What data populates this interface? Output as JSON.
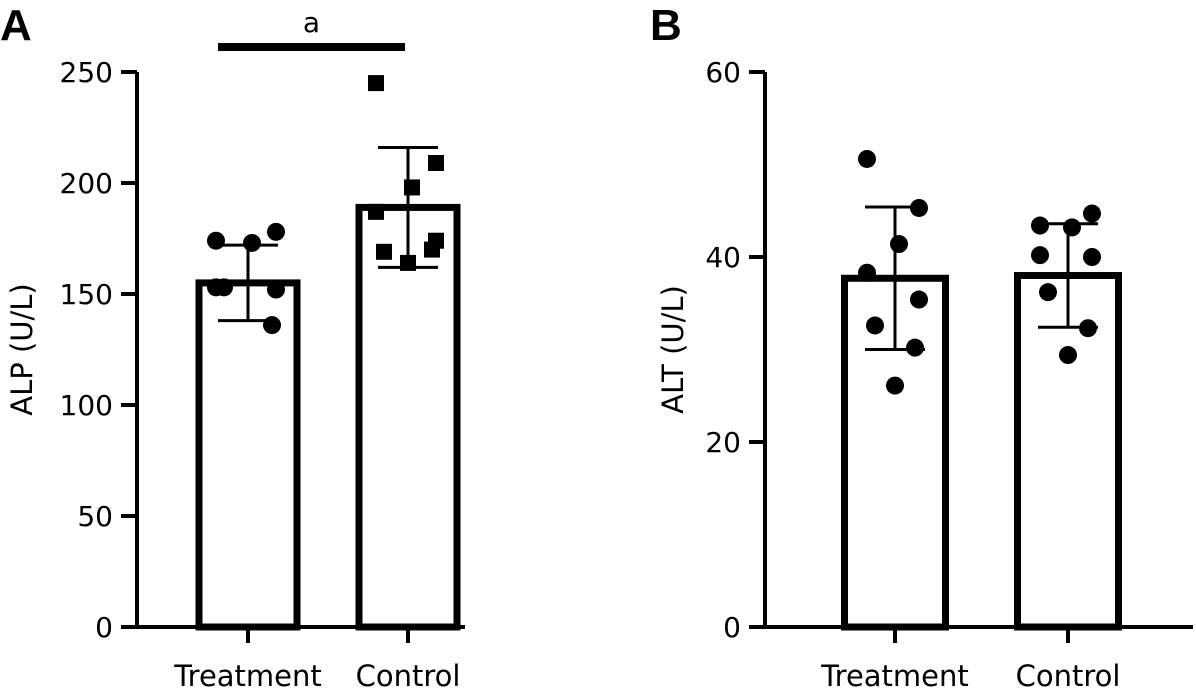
{
  "figure": {
    "panels": [
      "A",
      "B"
    ]
  },
  "chart_data": [
    {
      "type": "bar",
      "panel": "A",
      "title": "",
      "xlabel": "",
      "ylabel": "ALP (U/L)",
      "categories": [
        "Treatment",
        "Control"
      ],
      "values": [
        155,
        189
      ],
      "error": [
        17,
        27
      ],
      "ylim": [
        0,
        250
      ],
      "yticks": [
        0,
        50,
        100,
        150,
        200,
        250
      ],
      "grid": false,
      "points": [
        {
          "category": "Treatment",
          "marker": "circle",
          "values": [
            174,
            178,
            173,
            153,
            152,
            153,
            136
          ]
        },
        {
          "category": "Control",
          "marker": "square",
          "values": [
            245,
            209,
            198,
            187,
            174,
            169,
            170,
            164
          ]
        }
      ],
      "significance": {
        "label": "a",
        "between": [
          "Treatment",
          "Control"
        ]
      }
    },
    {
      "type": "bar",
      "panel": "B",
      "title": "",
      "xlabel": "",
      "ylabel": "ALT (U/L)",
      "categories": [
        "Treatment",
        "Control"
      ],
      "values": [
        37.7,
        38
      ],
      "error": [
        7.7,
        5.6
      ],
      "ylim": [
        0,
        60
      ],
      "yticks": [
        0,
        20,
        40,
        60
      ],
      "grid": false,
      "points": [
        {
          "category": "Treatment",
          "marker": "circle",
          "values": [
            50.6,
            45.3,
            41.4,
            38.3,
            35.4,
            32.6,
            30.2,
            26.1
          ]
        },
        {
          "category": "Control",
          "marker": "circle",
          "values": [
            43.4,
            44.7,
            43.2,
            40.2,
            40,
            36.2,
            32.3,
            29.4
          ]
        }
      ]
    }
  ]
}
